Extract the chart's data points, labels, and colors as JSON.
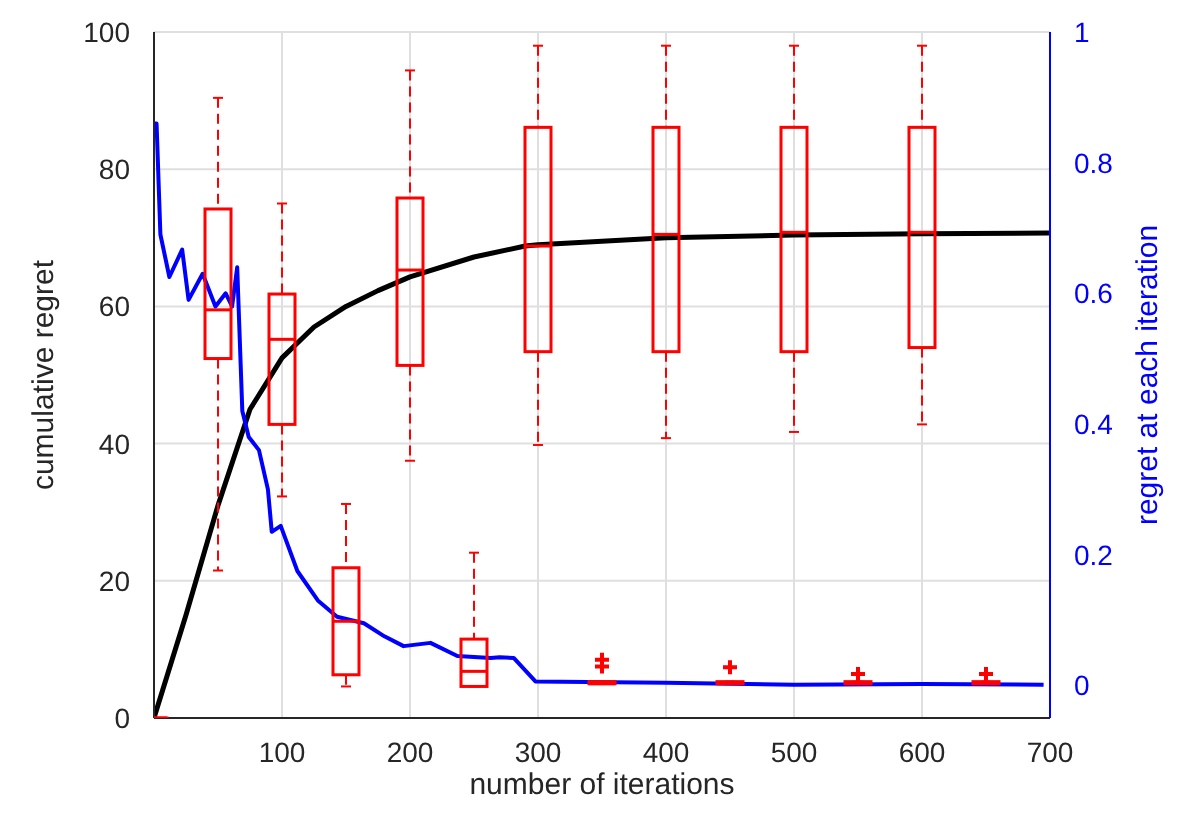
{
  "chart_data": {
    "type": "line",
    "xlabel": "number of iterations",
    "ylabel": "cumulative regret",
    "y2label": "regret at each iteration",
    "xlim": [
      0,
      700
    ],
    "xticks": [
      100,
      200,
      300,
      400,
      500,
      600,
      700
    ],
    "ylim": [
      0,
      100
    ],
    "yticks": [
      0,
      20,
      40,
      60,
      80,
      100
    ],
    "y2lim": [
      -0.05,
      1
    ],
    "y2ticks": [
      0,
      0.2,
      0.4,
      0.6,
      0.8,
      1
    ],
    "grid": true,
    "legend": false,
    "marker": "none",
    "series": [
      {
        "color": "#000000",
        "x": [
          0,
          25,
          50,
          75,
          100,
          125,
          150,
          175,
          200,
          250,
          290,
          300,
          400,
          500,
          600,
          700
        ],
        "values": [
          0,
          15,
          31,
          45,
          52.5,
          57,
          60,
          62.3,
          64.3,
          67.2,
          68.8,
          69,
          70,
          70.4,
          70.6,
          70.7
        ]
      },
      {
        "axis": "y2",
        "color": "#0000ff",
        "x": [
          0,
          2,
          5,
          12,
          22,
          27,
          38,
          48,
          56,
          61,
          65,
          69,
          74,
          82,
          89,
          92,
          99,
          112,
          128,
          143,
          164,
          180,
          195,
          216,
          237,
          263,
          270,
          281,
          298,
          400,
          500,
          600,
          695
        ],
        "values": [
          0.86,
          0.86,
          0.69,
          0.625,
          0.667,
          0.59,
          0.63,
          0.58,
          0.6,
          0.58,
          0.64,
          0.42,
          0.38,
          0.36,
          0.3,
          0.235,
          0.244,
          0.175,
          0.13,
          0.105,
          0.095,
          0.075,
          0.06,
          0.065,
          0.045,
          0.042,
          0.043,
          0.042,
          0.006,
          0.004,
          0.001,
          0.002,
          0.001
        ]
      },
      {
        "type": "box",
        "color": "#ff0000",
        "x": [
          0,
          50,
          100,
          150,
          200,
          250,
          300,
          350,
          400,
          450,
          500,
          550,
          600,
          650
        ],
        "boxes": [
          {
            "low": 0,
            "q1": 0,
            "median": 0,
            "q3": 0,
            "high": 0
          },
          {
            "low": 21.5,
            "q1": 52.4,
            "median": 59.5,
            "q3": 74.2,
            "high": 90.4
          },
          {
            "low": 32.3,
            "q1": 42.8,
            "median": 55.2,
            "q3": 61.8,
            "high": 75
          },
          {
            "low": 4.6,
            "q1": 6.3,
            "median": 14.1,
            "q3": 21.9,
            "high": 31.2
          },
          {
            "low": 37.5,
            "q1": 51.4,
            "median": 65.3,
            "q3": 75.8,
            "high": 94.4
          },
          {
            "low": 4.6,
            "q1": 4.6,
            "median": 6.8,
            "q3": 11.5,
            "high": 24.1
          },
          {
            "low": 39.8,
            "q1": 53.4,
            "median": 68.8,
            "q3": 86.1,
            "high": 98
          },
          {
            "low": 5,
            "q1": 5,
            "median": 5,
            "q3": 5.3,
            "high": 5.3,
            "outliers": [
              7.5,
              8.5
            ]
          },
          {
            "low": 40.8,
            "q1": 53.4,
            "median": 70.5,
            "q3": 86.1,
            "high": 98
          },
          {
            "low": 5,
            "q1": 5,
            "median": 5,
            "q3": 5.3,
            "high": 5.3,
            "outliers": [
              7.4
            ]
          },
          {
            "low": 41.7,
            "q1": 53.4,
            "median": 70.8,
            "q3": 86.1,
            "high": 98
          },
          {
            "low": 5,
            "q1": 5,
            "median": 5,
            "q3": 5.3,
            "high": 5.3,
            "outliers": [
              6.4
            ]
          },
          {
            "low": 42.8,
            "q1": 54,
            "median": 70.8,
            "q3": 86.1,
            "high": 98
          },
          {
            "low": 5,
            "q1": 5,
            "median": 5,
            "q3": 5.3,
            "high": 5.3,
            "outliers": [
              6.4
            ]
          }
        ]
      }
    ]
  }
}
